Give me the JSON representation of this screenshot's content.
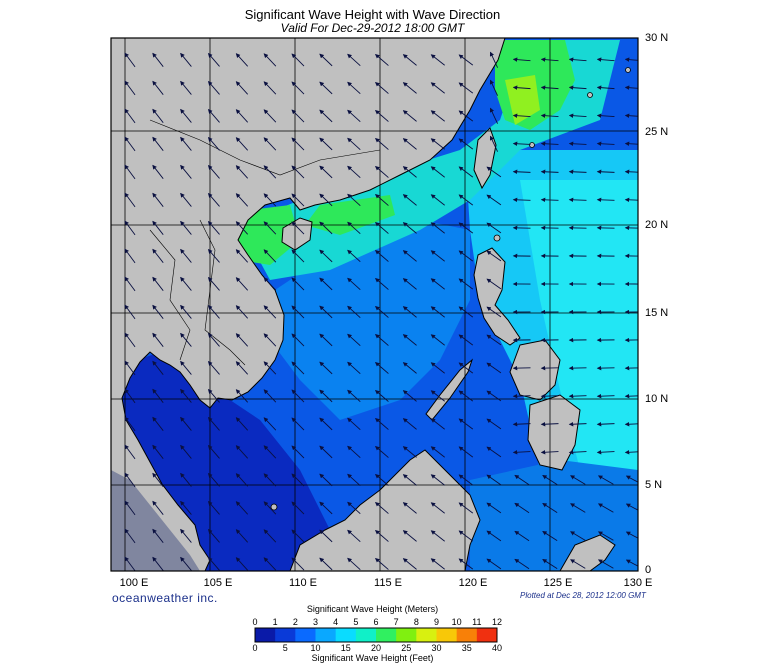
{
  "header": {
    "title": "Significant Wave Height with Wave Direction",
    "subtitle": "Valid For Dec-29-2012 18:00 GMT"
  },
  "axes": {
    "lat_labels": [
      "30 N",
      "25 N",
      "20 N",
      "15 N",
      "10 N",
      "5 N",
      "0"
    ],
    "lon_labels": [
      "100 E",
      "105 E",
      "110 E",
      "115 E",
      "120 E",
      "125 E",
      "130 E"
    ]
  },
  "footer": {
    "brand": "oceanweather inc.",
    "plotted": "Plotted at Dec 28, 2012 12:00 GMT"
  },
  "legend": {
    "meters_title": "Significant Wave Height (Meters)",
    "feet_title": "Significant Wave Height (Feet)",
    "meters_ticks": [
      "0",
      "1",
      "2",
      "3",
      "4",
      "5",
      "6",
      "7",
      "8",
      "9",
      "10",
      "11",
      "12"
    ],
    "feet_ticks": [
      "0",
      "5",
      "10",
      "15",
      "20",
      "25",
      "30",
      "35",
      "40"
    ],
    "colors": [
      "#0a1aa8",
      "#0a3ad8",
      "#0a6aff",
      "#0aa8ff",
      "#0adcff",
      "#10f0c8",
      "#30f060",
      "#80f010",
      "#d8f010",
      "#f8c808",
      "#f88008",
      "#f03010"
    ]
  },
  "colors": {
    "land": "#c0c0c0",
    "deep_low": "#0a1a9a",
    "low": "#0a50e0",
    "mid": "#0a9af0",
    "cyan": "#1adcf8",
    "green": "#2ee85a",
    "lightgreen": "#8cf020"
  }
}
